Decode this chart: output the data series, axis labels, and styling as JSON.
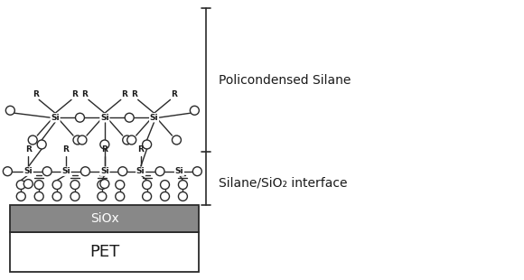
{
  "fig_width": 5.8,
  "fig_height": 3.1,
  "dpi": 100,
  "bg_color": "#ffffff",
  "line_color": "#2a2a2a",
  "siox_label": "SiOx",
  "pet_label": "PET",
  "siox_color": "#888888",
  "pet_color": "#ffffff",
  "label_policondensed": "Policondensed Silane",
  "label_interface": "Silane/SiO₂ interface",
  "line_width": 1.0,
  "si_fontsize": 6.5,
  "r_fontsize": 6.5,
  "label_fontsize": 10,
  "pet_fontsize": 13,
  "siox_fontsize": 10
}
